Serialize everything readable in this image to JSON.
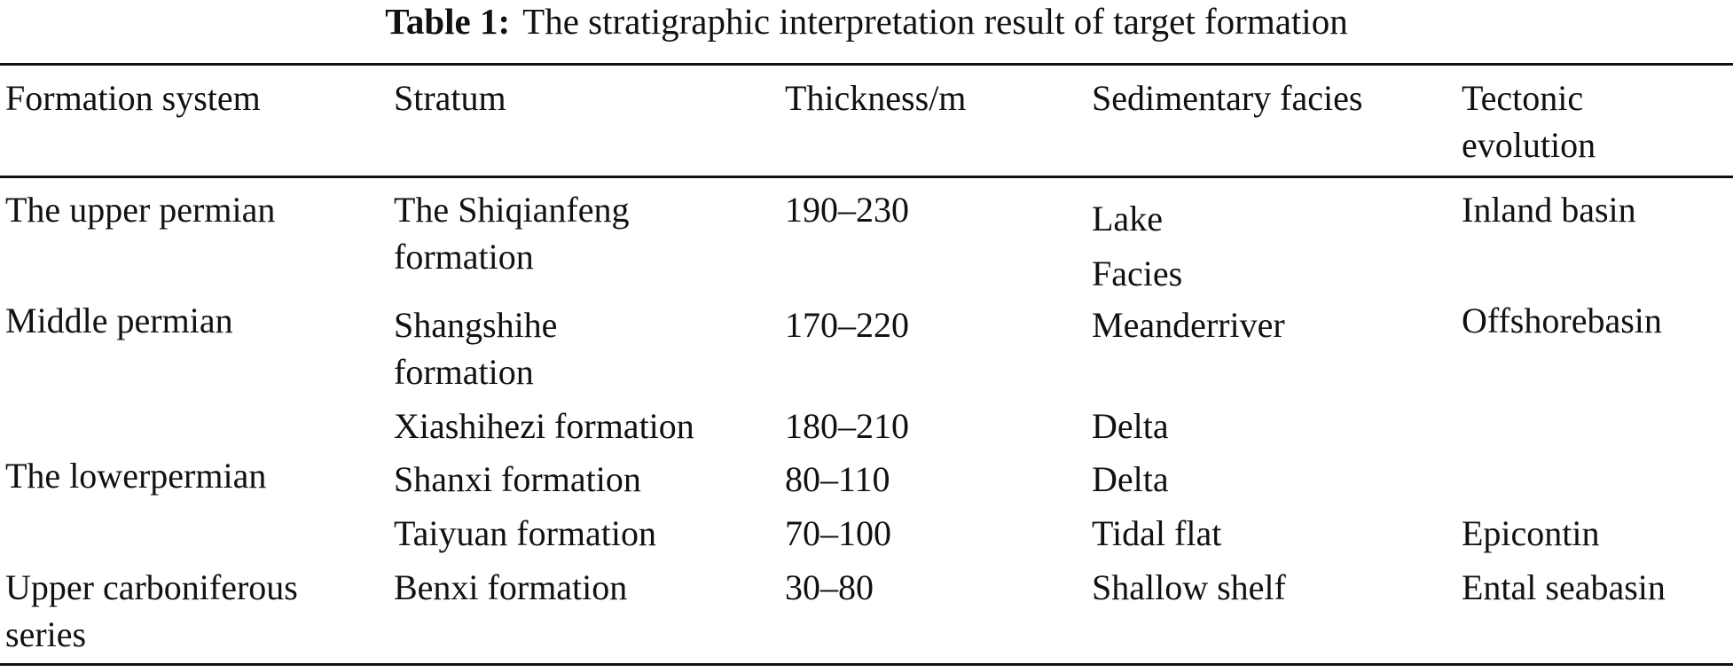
{
  "caption": {
    "label": "Table 1:",
    "text": "The stratigraphic interpretation result of target formation"
  },
  "table": {
    "headers": [
      "Formation system",
      "Stratum",
      "Thickness/m",
      "Sedimentary facies",
      "Tectonic evolution"
    ],
    "rows": [
      {
        "formation_system": "The upper permian",
        "stratum": "The Shiqianfeng formation",
        "thickness": "190–230",
        "facies": "Lake Facies",
        "tectonic": "Inland basin"
      },
      {
        "formation_system": "Middle permian",
        "stratum": "Shangshihe formation",
        "thickness": "170–220",
        "facies": "Meanderriver",
        "tectonic": "Offshorebasin"
      },
      {
        "formation_system": "",
        "stratum": "Xiashihezi formation",
        "thickness": "180–210",
        "facies": "Delta",
        "tectonic": ""
      },
      {
        "formation_system": "The lowerpermian",
        "stratum": "Shanxi formation",
        "thickness": "80–110",
        "facies": "Delta",
        "tectonic": ""
      },
      {
        "formation_system": "",
        "stratum": "Taiyuan formation",
        "thickness": "70–100",
        "facies": "Tidal flat",
        "tectonic": "Epicontin"
      },
      {
        "formation_system": "Upper carboniferous series",
        "stratum": "Benxi formation",
        "thickness": "30–80",
        "facies": "Shallow shelf",
        "tectonic": "Ental seabasin"
      }
    ]
  }
}
